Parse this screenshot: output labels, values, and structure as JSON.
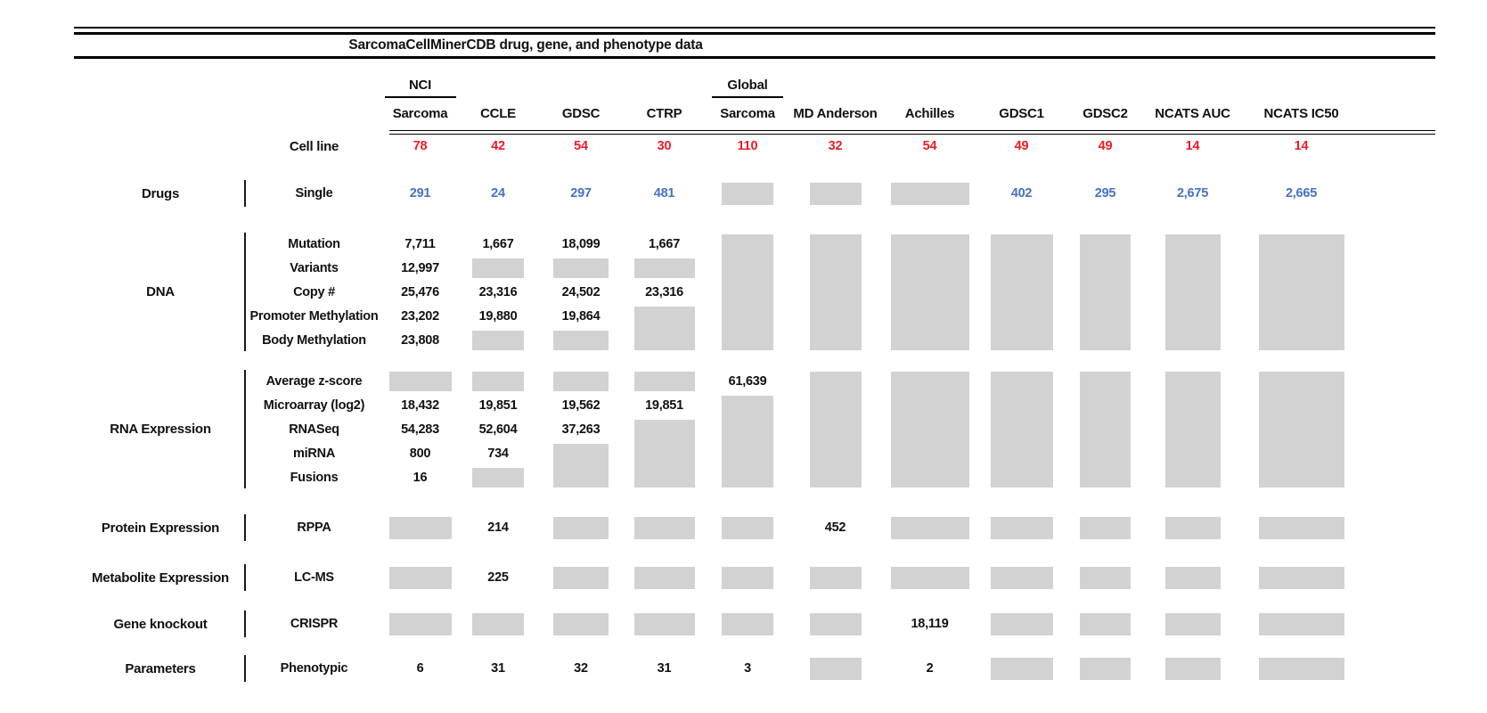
{
  "title": "SarcomaCellMinerCDB drug, gene, and phenotype data",
  "colors": {
    "missing_box": "#d2d2d2",
    "cell_line_values": "#ee1c25",
    "drug_values": "#4472c4",
    "text": "#111111"
  },
  "chart_data": {
    "type": "table",
    "title": "SarcomaCellMinerCDB drug, gene, and phenotype data",
    "missing_data_marker": "NA = gray box (data not available)",
    "columns": [
      {
        "label": "Sarcoma",
        "group": "NCI"
      },
      {
        "label": "CCLE"
      },
      {
        "label": "GDSC"
      },
      {
        "label": "CTRP"
      },
      {
        "label": "Sarcoma",
        "group": "Global"
      },
      {
        "label": "MD Anderson"
      },
      {
        "label": "Achilles"
      },
      {
        "label": "GDSC1"
      },
      {
        "label": "GDSC2"
      },
      {
        "label": "NCATS AUC"
      },
      {
        "label": "NCATS IC50"
      }
    ],
    "cell_line_row": {
      "label": "Cell line",
      "values": [
        "78",
        "42",
        "54",
        "30",
        "110",
        "32",
        "54",
        "49",
        "49",
        "14",
        "14"
      ]
    },
    "blocks": [
      {
        "category": "Drugs",
        "row_labels": [
          "Single"
        ],
        "value_color": "blue",
        "cells": [
          [
            "291",
            "24",
            "297",
            "481",
            "NA",
            "NA",
            "NA",
            "402",
            "295",
            "2,675",
            "2,665"
          ]
        ],
        "boxes": [
          {
            "col": 5,
            "row": 1,
            "span": 1
          },
          {
            "col": 6,
            "row": 1,
            "span": 1
          },
          {
            "col": 7,
            "row": 1,
            "span": 1
          }
        ]
      },
      {
        "category": "DNA",
        "row_labels": [
          "Mutation",
          "Variants",
          "Copy #",
          "Promoter Methylation",
          "Body Methylation"
        ],
        "cells": [
          [
            "7,711",
            "1,667",
            "18,099",
            "1,667",
            "NA",
            "NA",
            "NA",
            "NA",
            "NA",
            "NA",
            "NA"
          ],
          [
            "12,997",
            "NA",
            "NA",
            "NA",
            "NA",
            "NA",
            "NA",
            "NA",
            "NA",
            "NA",
            "NA"
          ],
          [
            "25,476",
            "23,316",
            "24,502",
            "23,316",
            "NA",
            "NA",
            "NA",
            "NA",
            "NA",
            "NA",
            "NA"
          ],
          [
            "23,202",
            "19,880",
            "19,864",
            "NA",
            "NA",
            "NA",
            "NA",
            "NA",
            "NA",
            "NA",
            "NA"
          ],
          [
            "23,808",
            "NA",
            "NA",
            "NA",
            "NA",
            "NA",
            "NA",
            "NA",
            "NA",
            "NA",
            "NA"
          ]
        ],
        "boxes": [
          {
            "col": 2,
            "row": 2,
            "span": 1
          },
          {
            "col": 3,
            "row": 2,
            "span": 1
          },
          {
            "col": 4,
            "row": 2,
            "span": 1
          },
          {
            "col": 2,
            "row": 5,
            "span": 1
          },
          {
            "col": 3,
            "row": 5,
            "span": 1
          },
          {
            "col": 4,
            "row": 4,
            "span": 2
          },
          {
            "col": 5,
            "row": 1,
            "span": 5
          },
          {
            "col": 6,
            "row": 1,
            "span": 5
          },
          {
            "col": 7,
            "row": 1,
            "span": 5
          },
          {
            "col": 8,
            "row": 1,
            "span": 5
          },
          {
            "col": 9,
            "row": 1,
            "span": 5
          },
          {
            "col": 10,
            "row": 1,
            "span": 5
          },
          {
            "col": 11,
            "row": 1,
            "span": 5
          }
        ]
      },
      {
        "category": "RNA Expression",
        "row_labels": [
          "Average z-score",
          "Microarray (log2)",
          "RNASeq",
          "miRNA",
          "Fusions"
        ],
        "cells": [
          [
            "NA",
            "NA",
            "NA",
            "NA",
            "61,639",
            "NA",
            "NA",
            "NA",
            "NA",
            "NA",
            "NA"
          ],
          [
            "18,432",
            "19,851",
            "19,562",
            "19,851",
            "NA",
            "NA",
            "NA",
            "NA",
            "NA",
            "NA",
            "NA"
          ],
          [
            "54,283",
            "52,604",
            "37,263",
            "NA",
            "NA",
            "NA",
            "NA",
            "NA",
            "NA",
            "NA",
            "NA"
          ],
          [
            "800",
            "734",
            "NA",
            "NA",
            "NA",
            "NA",
            "NA",
            "NA",
            "NA",
            "NA",
            "NA"
          ],
          [
            "16",
            "NA",
            "NA",
            "NA",
            "NA",
            "NA",
            "NA",
            "NA",
            "NA",
            "NA",
            "NA"
          ]
        ],
        "boxes": [
          {
            "col": 1,
            "row": 1,
            "span": 1
          },
          {
            "col": 2,
            "row": 1,
            "span": 1
          },
          {
            "col": 3,
            "row": 1,
            "span": 1
          },
          {
            "col": 4,
            "row": 1,
            "span": 1
          },
          {
            "col": 2,
            "row": 5,
            "span": 1
          },
          {
            "col": 3,
            "row": 4,
            "span": 2
          },
          {
            "col": 4,
            "row": 3,
            "span": 3
          },
          {
            "col": 5,
            "row": 2,
            "span": 4
          },
          {
            "col": 6,
            "row": 1,
            "span": 5
          },
          {
            "col": 7,
            "row": 1,
            "span": 5
          },
          {
            "col": 8,
            "row": 1,
            "span": 5
          },
          {
            "col": 9,
            "row": 1,
            "span": 5
          },
          {
            "col": 10,
            "row": 1,
            "span": 5
          },
          {
            "col": 11,
            "row": 1,
            "span": 5
          }
        ]
      },
      {
        "category": "Protein Expression",
        "row_labels": [
          "RPPA"
        ],
        "cells": [
          [
            "NA",
            "214",
            "NA",
            "NA",
            "NA",
            "452",
            "NA",
            "NA",
            "NA",
            "NA",
            "NA"
          ]
        ],
        "boxes": [
          {
            "col": 1,
            "row": 1,
            "span": 1
          },
          {
            "col": 3,
            "row": 1,
            "span": 1
          },
          {
            "col": 4,
            "row": 1,
            "span": 1
          },
          {
            "col": 5,
            "row": 1,
            "span": 1
          },
          {
            "col": 7,
            "row": 1,
            "span": 1
          },
          {
            "col": 8,
            "row": 1,
            "span": 1
          },
          {
            "col": 9,
            "row": 1,
            "span": 1
          },
          {
            "col": 10,
            "row": 1,
            "span": 1
          },
          {
            "col": 11,
            "row": 1,
            "span": 1
          }
        ]
      },
      {
        "category": "Metabolite Expression",
        "row_labels": [
          "LC-MS"
        ],
        "cells": [
          [
            "NA",
            "225",
            "NA",
            "NA",
            "NA",
            "NA",
            "NA",
            "NA",
            "NA",
            "NA",
            "NA"
          ]
        ],
        "boxes": [
          {
            "col": 1,
            "row": 1,
            "span": 1
          },
          {
            "col": 3,
            "row": 1,
            "span": 1
          },
          {
            "col": 4,
            "row": 1,
            "span": 1
          },
          {
            "col": 5,
            "row": 1,
            "span": 1
          },
          {
            "col": 6,
            "row": 1,
            "span": 1
          },
          {
            "col": 7,
            "row": 1,
            "span": 1
          },
          {
            "col": 8,
            "row": 1,
            "span": 1
          },
          {
            "col": 9,
            "row": 1,
            "span": 1
          },
          {
            "col": 10,
            "row": 1,
            "span": 1
          },
          {
            "col": 11,
            "row": 1,
            "span": 1
          }
        ]
      },
      {
        "category": "Gene knockout",
        "row_labels": [
          "CRISPR"
        ],
        "cells": [
          [
            "NA",
            "NA",
            "NA",
            "NA",
            "NA",
            "NA",
            "18,119",
            "NA",
            "NA",
            "NA",
            "NA"
          ]
        ],
        "boxes": [
          {
            "col": 1,
            "row": 1,
            "span": 1
          },
          {
            "col": 2,
            "row": 1,
            "span": 1
          },
          {
            "col": 3,
            "row": 1,
            "span": 1
          },
          {
            "col": 4,
            "row": 1,
            "span": 1
          },
          {
            "col": 5,
            "row": 1,
            "span": 1
          },
          {
            "col": 6,
            "row": 1,
            "span": 1
          },
          {
            "col": 8,
            "row": 1,
            "span": 1
          },
          {
            "col": 9,
            "row": 1,
            "span": 1
          },
          {
            "col": 10,
            "row": 1,
            "span": 1
          },
          {
            "col": 11,
            "row": 1,
            "span": 1
          }
        ]
      },
      {
        "category": "Parameters",
        "row_labels": [
          "Phenotypic"
        ],
        "cells": [
          [
            "6",
            "31",
            "32",
            "31",
            "3",
            "NA",
            "2",
            "NA",
            "NA",
            "NA",
            "NA"
          ]
        ],
        "boxes": [
          {
            "col": 6,
            "row": 1,
            "span": 1
          },
          {
            "col": 8,
            "row": 1,
            "span": 1
          },
          {
            "col": 9,
            "row": 1,
            "span": 1
          },
          {
            "col": 10,
            "row": 1,
            "span": 1
          },
          {
            "col": 11,
            "row": 1,
            "span": 1
          }
        ]
      }
    ]
  }
}
